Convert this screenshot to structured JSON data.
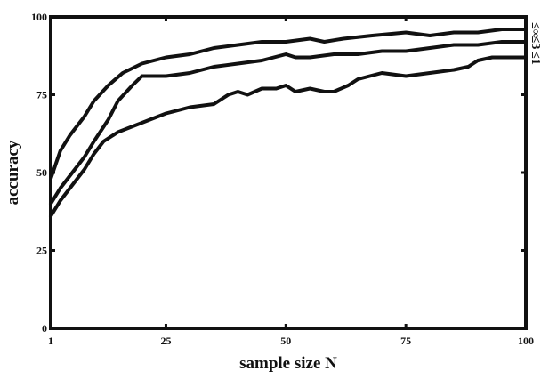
{
  "chart_data": {
    "type": "line",
    "xlabel": "sample size N",
    "ylabel": "accuracy",
    "xlim": [
      1,
      100
    ],
    "ylim": [
      0,
      100
    ],
    "xticks": [
      1,
      25,
      50,
      75,
      100
    ],
    "yticks": [
      0,
      25,
      50,
      75,
      100
    ],
    "grid": false,
    "legend": "right",
    "line_color": "#111111",
    "series": [
      {
        "name": "≤∞",
        "x": [
          1,
          3,
          5,
          8,
          10,
          13,
          16,
          20,
          25,
          30,
          35,
          40,
          45,
          50,
          55,
          58,
          62,
          68,
          75,
          80,
          85,
          90,
          95,
          100
        ],
        "y": [
          48,
          57,
          62,
          68,
          73,
          78,
          82,
          85,
          87,
          88,
          90,
          91,
          92,
          92,
          93,
          92,
          93,
          94,
          95,
          94,
          95,
          95,
          96,
          96
        ]
      },
      {
        "name": "≤3",
        "x": [
          1,
          3,
          5,
          8,
          10,
          13,
          15,
          18,
          20,
          25,
          30,
          35,
          40,
          45,
          50,
          52,
          55,
          60,
          65,
          70,
          75,
          80,
          85,
          90,
          95,
          100
        ],
        "y": [
          40,
          45,
          49,
          55,
          60,
          67,
          73,
          78,
          81,
          81,
          82,
          84,
          85,
          86,
          88,
          87,
          87,
          88,
          88,
          89,
          89,
          90,
          91,
          91,
          92,
          92
        ]
      },
      {
        "name": "≤1",
        "x": [
          1,
          3,
          5,
          8,
          10,
          12,
          15,
          20,
          25,
          30,
          35,
          38,
          40,
          42,
          45,
          48,
          50,
          52,
          55,
          58,
          60,
          63,
          65,
          70,
          75,
          80,
          85,
          88,
          90,
          93,
          95,
          100
        ],
        "y": [
          36,
          41,
          45,
          51,
          56,
          60,
          63,
          66,
          69,
          71,
          72,
          75,
          76,
          75,
          77,
          77,
          78,
          76,
          77,
          76,
          76,
          78,
          80,
          82,
          81,
          82,
          83,
          84,
          86,
          87,
          87,
          87
        ]
      }
    ]
  }
}
